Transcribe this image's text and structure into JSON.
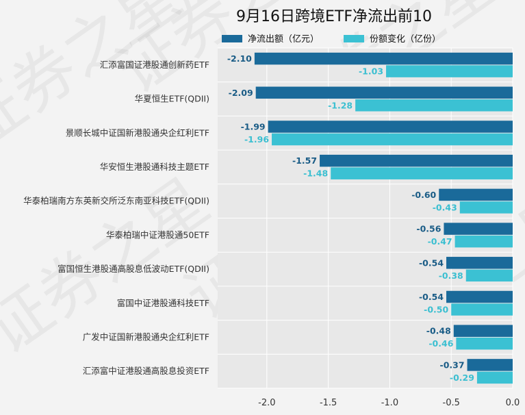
{
  "chart_data": {
    "type": "bar",
    "orientation": "horizontal",
    "title": "9月16日跨境ETF净流出前10",
    "categories": [
      "汇添富国证港股通创新药ETF",
      "华夏恒生ETF(QDII)",
      "景顺长城中证国新港股通央企红利ETF",
      "华安恒生港股通科技主题ETF",
      "华泰柏瑞南方东英新交所泛东南亚科技ETF(QDII)",
      "华泰柏瑞中证港股通50ETF",
      "富国恒生港股通高股息低波动ETF(QDII)",
      "富国中证港股通科技ETF",
      "广发中证国新港股通央企红利ETF",
      "汇添富中证港股通高股息投资ETF"
    ],
    "series": [
      {
        "name": "净流出额（亿元）",
        "color": "#1a6a9a",
        "values": [
          -2.1,
          -2.09,
          -1.99,
          -1.57,
          -0.6,
          -0.56,
          -0.54,
          -0.54,
          -0.48,
          -0.37
        ]
      },
      {
        "name": "份额变化（亿份）",
        "color": "#3bc1d3",
        "values": [
          -1.03,
          -1.28,
          -1.96,
          -1.48,
          -0.43,
          -0.47,
          -0.38,
          -0.5,
          -0.46,
          -0.29
        ]
      }
    ],
    "xlim": [
      -2.4,
      0.0
    ],
    "xticks": [
      "-2.0",
      "-1.5",
      "-1.0",
      "-0.5",
      "0.0"
    ],
    "grid": true,
    "legend_position": "top"
  },
  "watermark": "证券之星"
}
